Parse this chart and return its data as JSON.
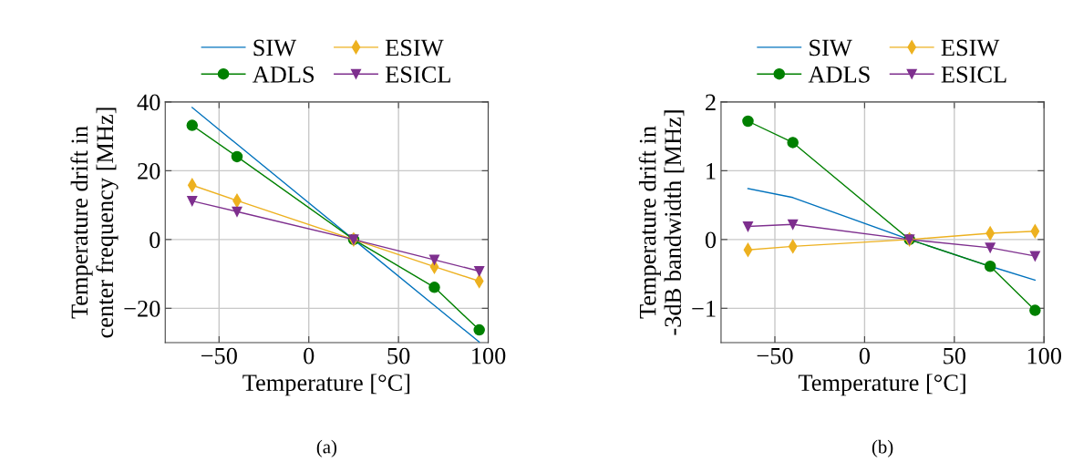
{
  "chart_data": [
    {
      "type": "line",
      "xlabel": "Temperature [°C]",
      "ylabel": "Temperature drift in\ncenter frequency [MHz]",
      "annotations": [
        "(a)"
      ],
      "x": [
        -65,
        -40,
        25,
        70,
        95
      ],
      "xlim": [
        -80,
        100
      ],
      "ylim": [
        -30,
        40
      ],
      "xticks": [
        {
          "value": -50,
          "label": "−50"
        },
        0,
        50,
        100
      ],
      "yticks": [
        {
          "value": -20,
          "label": "−20"
        },
        0,
        20,
        40
      ],
      "grid": true,
      "legend": "top",
      "series": [
        {
          "name": "SIW",
          "color": "#0072bd",
          "marker": "none",
          "values": [
            38.4,
            27.7,
            0,
            -19.2,
            -29.8
          ]
        },
        {
          "name": "ADLS",
          "color": "#008000",
          "marker": "circle",
          "values": [
            33.2,
            24.1,
            0,
            -13.9,
            -26.3
          ]
        },
        {
          "name": "ESIW",
          "color": "#edb120",
          "marker": "diamond",
          "values": [
            15.8,
            11.3,
            0,
            -7.9,
            -12.1
          ]
        },
        {
          "name": "ESICL",
          "color": "#7e2f8e",
          "marker": "triangle",
          "values": [
            11.2,
            8.1,
            0,
            -5.9,
            -9.2
          ]
        }
      ]
    },
    {
      "type": "line",
      "xlabel": "Temperature [°C]",
      "ylabel": "Temperature drift in\n-3dB bandwidth [MHz]",
      "annotations": [
        "(b)"
      ],
      "x": [
        -65,
        -40,
        25,
        70,
        95
      ],
      "xlim": [
        -80,
        100
      ],
      "ylim": [
        -1.5,
        2
      ],
      "xticks": [
        {
          "value": -50,
          "label": "−50"
        },
        0,
        50,
        100
      ],
      "yticks": [
        {
          "value": -1,
          "label": "−1"
        },
        0,
        1,
        2
      ],
      "grid": true,
      "legend": "top",
      "series": [
        {
          "name": "SIW",
          "color": "#0072bd",
          "marker": "none",
          "values": [
            0.74,
            0.61,
            0,
            -0.39,
            -0.59
          ]
        },
        {
          "name": "ADLS",
          "color": "#008000",
          "marker": "circle",
          "values": [
            1.72,
            1.41,
            0,
            -0.39,
            -1.03
          ]
        },
        {
          "name": "ESIW",
          "color": "#edb120",
          "marker": "diamond",
          "values": [
            -0.15,
            -0.1,
            0,
            0.09,
            0.12
          ]
        },
        {
          "name": "ESICL",
          "color": "#7e2f8e",
          "marker": "triangle",
          "values": [
            0.19,
            0.22,
            0,
            -0.12,
            -0.24
          ]
        }
      ]
    }
  ]
}
